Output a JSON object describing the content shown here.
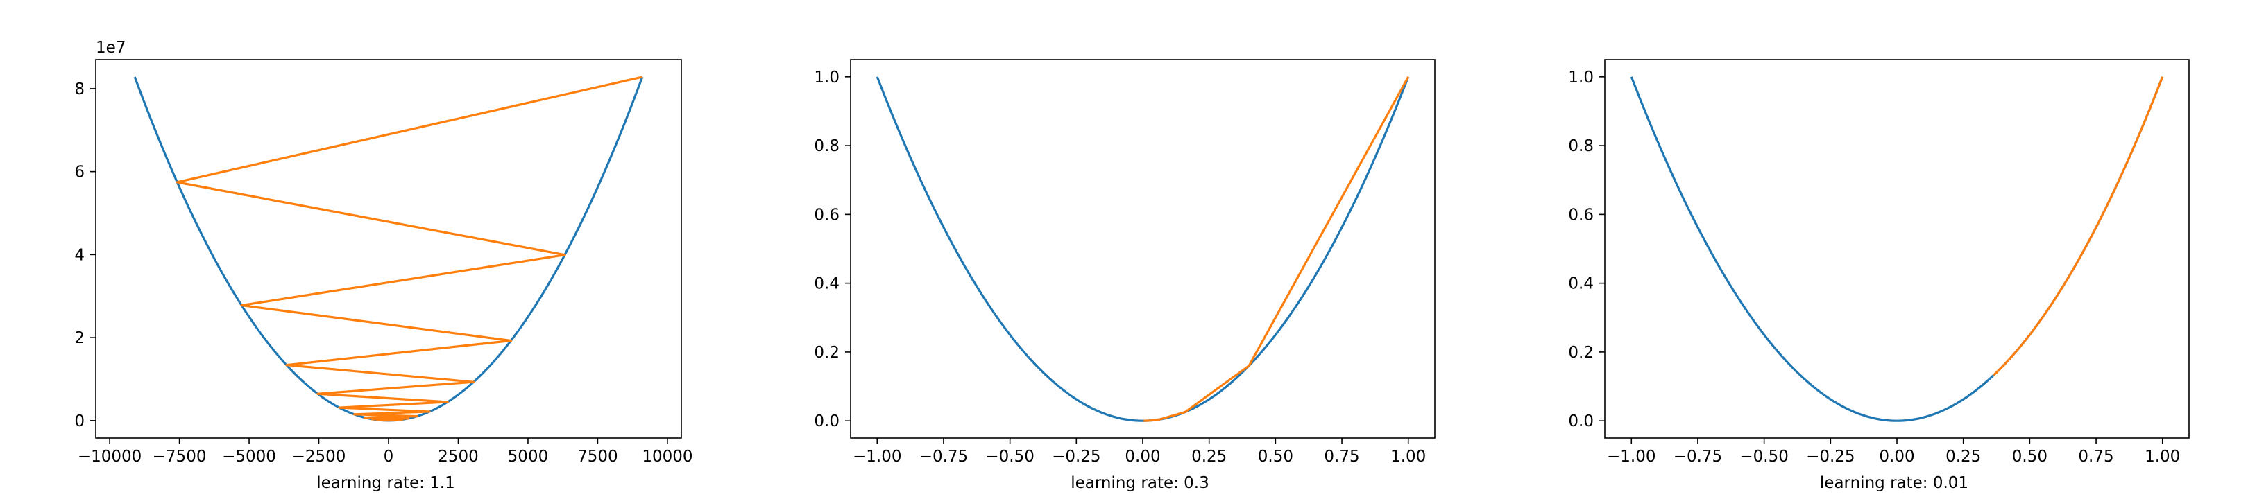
{
  "colors": {
    "curve": "#1f77b4",
    "path": "#ff7f0e",
    "axes": "#000000",
    "background": "#ffffff"
  },
  "chart_data": [
    {
      "type": "line",
      "xlabel": "learning rate: 1.1",
      "ylabel": "",
      "title": "",
      "y_offset_label": "1e7",
      "xlim": [
        -10500,
        10500
      ],
      "ylim": [
        -4200000,
        87000000
      ],
      "xticks": [
        -10000,
        -7500,
        -5000,
        -2500,
        0,
        2500,
        5000,
        7500,
        10000
      ],
      "xtick_labels": [
        "−10000",
        "−7500",
        "−5000",
        "−2500",
        "0",
        "2500",
        "5000",
        "7500",
        "10000"
      ],
      "yticks": [
        0,
        20000000,
        40000000,
        60000000,
        80000000
      ],
      "ytick_labels": [
        "0",
        "2",
        "4",
        "6",
        "8"
      ],
      "grid": false,
      "series": [
        {
          "kind": "curve",
          "function": "x^2",
          "x_range": [
            -9100,
            9100
          ]
        },
        {
          "kind": "path",
          "points": [
            [
              9100,
              82810000
            ],
            [
              -7580,
              57456400
            ],
            [
              6320,
              39942400
            ],
            [
              -5270,
              27772900
            ],
            [
              4390,
              19272100
            ],
            [
              -3660,
              13395600
            ],
            [
              3050,
              9302500
            ],
            [
              -2540,
              6451600
            ],
            [
              2120,
              4494400
            ],
            [
              -1770,
              3132900
            ],
            [
              1470,
              2160900
            ],
            [
              -1230,
              1512900
            ],
            [
              1020,
              1040400
            ],
            [
              -850,
              722500
            ],
            [
              710,
              504100
            ],
            [
              -590,
              348100
            ],
            [
              490,
              240100
            ],
            [
              -410,
              168100
            ],
            [
              340,
              115600
            ],
            [
              -290,
              84100
            ],
            [
              240,
              57600
            ],
            [
              -200,
              40000
            ],
            [
              160,
              25600
            ],
            [
              -140,
              19600
            ],
            [
              110,
              12100
            ],
            [
              -100,
              10000
            ]
          ]
        }
      ]
    },
    {
      "type": "line",
      "xlabel": "learning rate: 0.3",
      "ylabel": "",
      "title": "",
      "xlim": [
        -1.1,
        1.1
      ],
      "ylim": [
        -0.05,
        1.05
      ],
      "xticks": [
        -1.0,
        -0.75,
        -0.5,
        -0.25,
        0.0,
        0.25,
        0.5,
        0.75,
        1.0
      ],
      "xtick_labels": [
        "−1.00",
        "−0.75",
        "−0.50",
        "−0.25",
        "0.00",
        "0.25",
        "0.50",
        "0.75",
        "1.00"
      ],
      "yticks": [
        0.0,
        0.2,
        0.4,
        0.6,
        0.8,
        1.0
      ],
      "ytick_labels": [
        "0.0",
        "0.2",
        "0.4",
        "0.6",
        "0.8",
        "1.0"
      ],
      "grid": false,
      "series": [
        {
          "kind": "curve",
          "function": "x^2",
          "x_range": [
            -1.0,
            1.0
          ]
        },
        {
          "kind": "path",
          "points": [
            [
              1.0,
              1.0
            ],
            [
              0.4,
              0.16
            ],
            [
              0.16,
              0.0256
            ],
            [
              0.064,
              0.0041
            ],
            [
              0.0256,
              0.00066
            ],
            [
              0.0102,
              0.0001
            ],
            [
              0.0041,
              2e-05
            ]
          ]
        }
      ]
    },
    {
      "type": "line",
      "xlabel": "learning rate: 0.01",
      "ylabel": "",
      "title": "",
      "xlim": [
        -1.1,
        1.1
      ],
      "ylim": [
        -0.05,
        1.05
      ],
      "xticks": [
        -1.0,
        -0.75,
        -0.5,
        -0.25,
        0.0,
        0.25,
        0.5,
        0.75,
        1.0
      ],
      "xtick_labels": [
        "−1.00",
        "−0.75",
        "−0.50",
        "−0.25",
        "0.00",
        "0.25",
        "0.50",
        "0.75",
        "1.00"
      ],
      "yticks": [
        0.0,
        0.2,
        0.4,
        0.6,
        0.8,
        1.0
      ],
      "ytick_labels": [
        "0.0",
        "0.2",
        "0.4",
        "0.6",
        "0.8",
        "1.0"
      ],
      "grid": false,
      "series": [
        {
          "kind": "curve",
          "function": "x^2",
          "x_range": [
            -1.0,
            1.0
          ]
        },
        {
          "kind": "descent",
          "x0": 1.0,
          "rate": 0.01,
          "steps": 50
        }
      ]
    }
  ]
}
